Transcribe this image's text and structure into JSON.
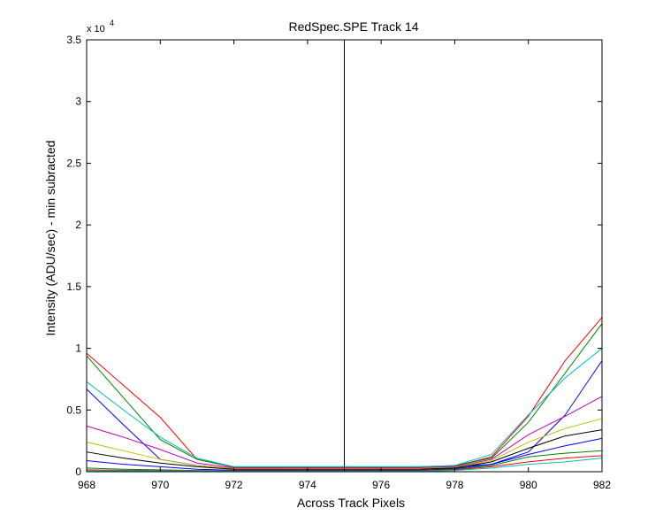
{
  "chart_data": {
    "type": "line",
    "title": "RedSpec.SPE   Track 14",
    "xlabel": "Across Track Pixels",
    "ylabel": "Intensity (ADU/sec) - min subracted",
    "y_exponent_base": "x 10",
    "y_exponent_power": "4",
    "xlim": [
      968,
      982
    ],
    "ylim": [
      0,
      3.5
    ],
    "x_ticks": [
      968,
      970,
      972,
      974,
      976,
      978,
      980,
      982
    ],
    "x_tick_labels": [
      "968",
      "970",
      "972",
      "974",
      "976",
      "978",
      "980",
      "982"
    ],
    "y_ticks": [
      0,
      0.5,
      1,
      1.5,
      2,
      2.5,
      3,
      3.5
    ],
    "y_tick_labels": [
      "0",
      "0.5",
      "1",
      "1.5",
      "2",
      "2.5",
      "3",
      "3.5"
    ],
    "grid": false,
    "legend": "none",
    "vertical_marker_x": 975,
    "x": [
      968,
      969,
      970,
      971,
      972,
      973,
      974,
      975,
      976,
      977,
      978,
      979,
      980,
      981,
      982
    ],
    "series": [
      {
        "color": "#ff0000",
        "values": [
          0.96,
          0.7,
          0.44,
          0.1,
          0.035,
          0.035,
          0.035,
          0.035,
          0.035,
          0.035,
          0.045,
          0.12,
          0.45,
          0.9,
          1.25
        ]
      },
      {
        "color": "#008000",
        "values": [
          0.94,
          0.6,
          0.26,
          0.1,
          0.04,
          0.04,
          0.04,
          0.04,
          0.04,
          0.04,
          0.05,
          0.11,
          0.4,
          0.8,
          1.2
        ]
      },
      {
        "color": "#00bfbf",
        "values": [
          0.73,
          0.5,
          0.28,
          0.11,
          0.04,
          0.04,
          0.04,
          0.04,
          0.04,
          0.04,
          0.05,
          0.14,
          0.46,
          0.76,
          1.0
        ]
      },
      {
        "color": "#0000ff",
        "values": [
          0.67,
          0.38,
          0.1,
          0.05,
          0.025,
          0.025,
          0.025,
          0.025,
          0.025,
          0.025,
          0.04,
          0.06,
          0.16,
          0.46,
          0.9
        ]
      },
      {
        "color": "#bf00bf",
        "values": [
          0.37,
          0.28,
          0.18,
          0.07,
          0.03,
          0.03,
          0.03,
          0.03,
          0.03,
          0.03,
          0.04,
          0.1,
          0.3,
          0.45,
          0.61
        ]
      },
      {
        "color": "#bfbf00",
        "values": [
          0.24,
          0.17,
          0.1,
          0.05,
          0.025,
          0.025,
          0.025,
          0.025,
          0.025,
          0.025,
          0.035,
          0.09,
          0.24,
          0.35,
          0.43
        ]
      },
      {
        "color": "#000000",
        "values": [
          0.16,
          0.11,
          0.07,
          0.04,
          0.02,
          0.02,
          0.02,
          0.02,
          0.02,
          0.02,
          0.03,
          0.08,
          0.19,
          0.29,
          0.34
        ]
      },
      {
        "color": "#0000ff",
        "values": [
          0.09,
          0.06,
          0.04,
          0.02,
          0.012,
          0.012,
          0.012,
          0.012,
          0.012,
          0.012,
          0.025,
          0.06,
          0.14,
          0.21,
          0.27
        ]
      },
      {
        "color": "#008000",
        "values": [
          0.03,
          0.02,
          0.015,
          0.01,
          0.008,
          0.008,
          0.008,
          0.008,
          0.008,
          0.008,
          0.02,
          0.05,
          0.12,
          0.15,
          0.17
        ]
      },
      {
        "color": "#ff0000",
        "values": [
          0.015,
          0.012,
          0.01,
          0.008,
          0.006,
          0.006,
          0.006,
          0.006,
          0.006,
          0.006,
          0.015,
          0.04,
          0.08,
          0.11,
          0.13
        ]
      },
      {
        "color": "#00bfbf",
        "values": [
          0.008,
          0.007,
          0.006,
          0.005,
          0.004,
          0.004,
          0.004,
          0.004,
          0.004,
          0.004,
          0.01,
          0.03,
          0.06,
          0.08,
          0.11
        ]
      }
    ]
  }
}
